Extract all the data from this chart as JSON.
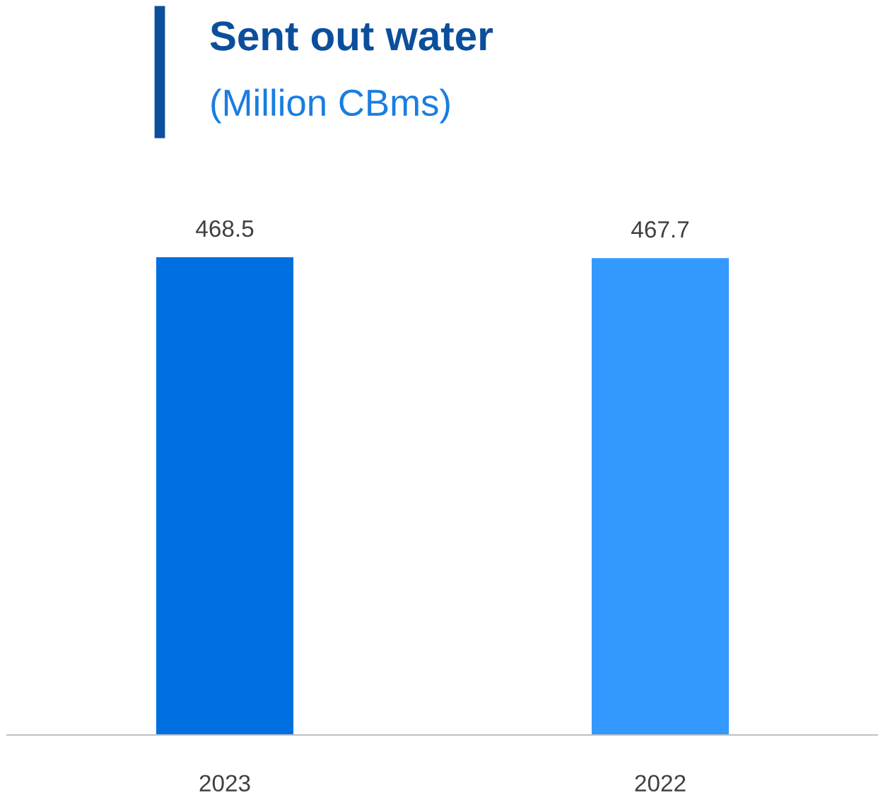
{
  "chart_data": {
    "type": "bar",
    "title": "Sent out water",
    "subtitle": "(Million CBms)",
    "categories": [
      "2023",
      "2022"
    ],
    "values": [
      468.5,
      467.7
    ],
    "colors": [
      "#0070e0",
      "#3399ff"
    ],
    "data_labels": true,
    "grid": false,
    "legend": false,
    "tick_labels": "x"
  }
}
